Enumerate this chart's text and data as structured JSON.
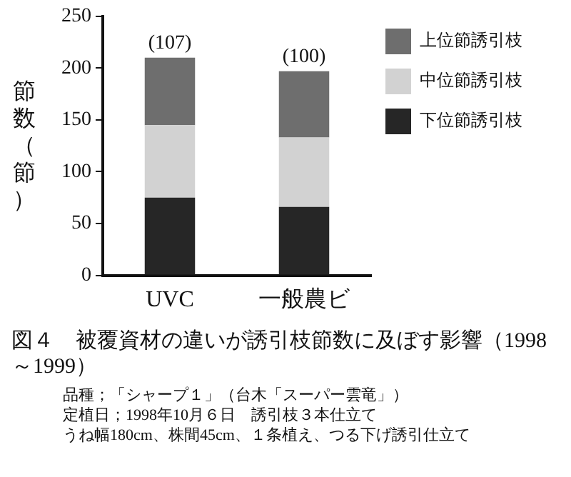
{
  "chart_data": {
    "type": "bar",
    "title": "図４　被覆資材の違いが誘引枝節数に及ぼす影響（1998～1999）",
    "ylabel": "節数（節）",
    "categories": [
      "UVC",
      "一般農ビ"
    ],
    "stacked": true,
    "series": [
      {
        "name": "下位節誘引枝",
        "color": "#262626",
        "values": [
          75,
          66
        ]
      },
      {
        "name": "中位節誘引枝",
        "color": "#d2d2d2",
        "values": [
          70,
          67
        ]
      },
      {
        "name": "上位節誘引枝",
        "color": "#6e6e6e",
        "values": [
          65,
          64
        ]
      }
    ],
    "ylim": [
      0,
      250
    ],
    "yticks": [
      0,
      50,
      100,
      150,
      200,
      250
    ],
    "grid": false,
    "legend": "top right",
    "annotations": [
      {
        "text": "(107)",
        "x": "UVC",
        "y": 210
      },
      {
        "text": "(100)",
        "x": "一般農ビ",
        "y": 197
      },
      "品種；「シャープ１」（台木「スーパー雲竜」）",
      "定植日；1998年10月６日　誘引枝３本仕立て",
      "うね幅180cm、株間45cm、１条植え、つる下げ誘引仕立て"
    ]
  }
}
